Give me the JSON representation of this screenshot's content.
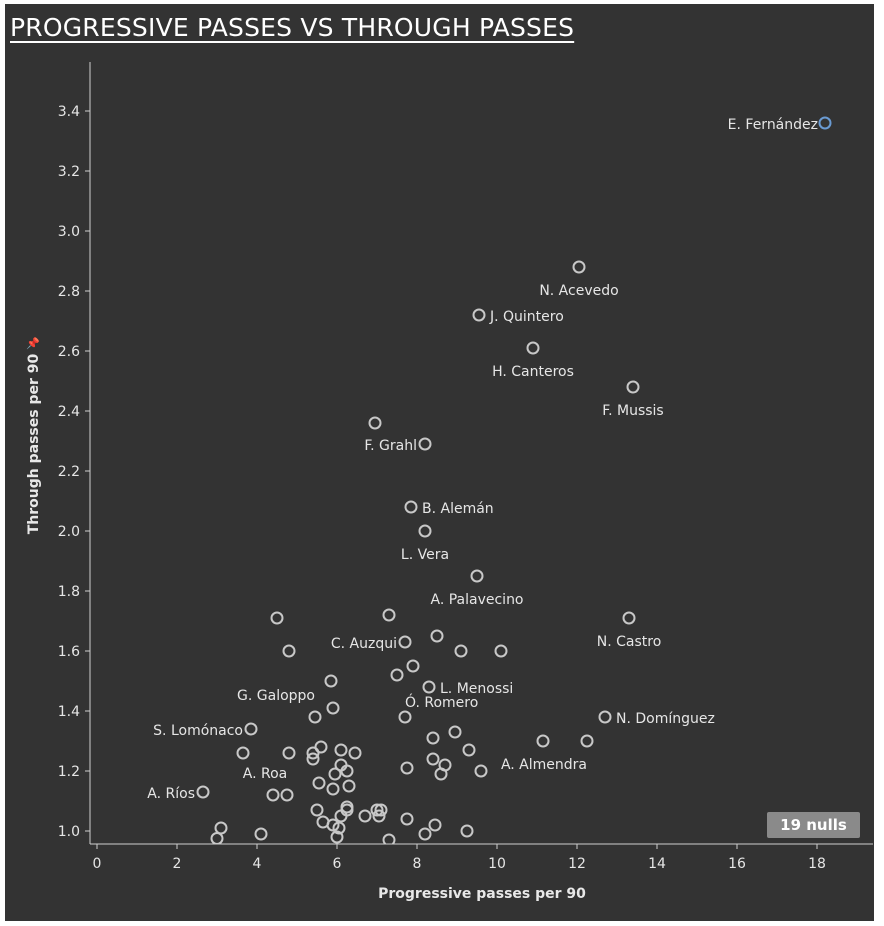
{
  "title": "PROGRESSIVE PASSES VS THROUGH PASSES",
  "nulls_badge": "19 nulls",
  "colors": {
    "background": "#333333",
    "point": "#c8c8c8",
    "highlight": "#6a9bd3",
    "axis": "#cfcfcf",
    "text": "#e6e6e6"
  },
  "chart_data": {
    "type": "scatter",
    "xlabel": "Progressive passes per 90",
    "ylabel": "Through passes per 90",
    "xlim": [
      -0.4,
      19.3
    ],
    "ylim": [
      0.96,
      3.6
    ],
    "xticks": [
      0,
      2,
      4,
      6,
      8,
      10,
      12,
      14,
      16,
      18
    ],
    "yticks": [
      1.0,
      1.2,
      1.4,
      1.6,
      1.8,
      2.0,
      2.2,
      2.4,
      2.6,
      2.8,
      3.0,
      3.2,
      3.4
    ],
    "grid": false,
    "points": [
      {
        "x": 18.2,
        "y": 3.36,
        "label": "E. Fernández",
        "highlight": true
      },
      {
        "x": 12.05,
        "y": 2.88,
        "label": "N. Acevedo"
      },
      {
        "x": 9.55,
        "y": 2.72,
        "label": "J. Quintero"
      },
      {
        "x": 10.9,
        "y": 2.61,
        "label": "H. Canteros"
      },
      {
        "x": 13.4,
        "y": 2.48,
        "label": "F. Mussis"
      },
      {
        "x": 6.95,
        "y": 2.36
      },
      {
        "x": 8.2,
        "y": 2.29,
        "label": "F. Grahl"
      },
      {
        "x": 7.85,
        "y": 2.08,
        "label": "B. Alemán"
      },
      {
        "x": 8.2,
        "y": 2.0,
        "label": "L. Vera"
      },
      {
        "x": 9.5,
        "y": 1.85,
        "label": "A. Palavecino"
      },
      {
        "x": 4.5,
        "y": 1.71
      },
      {
        "x": 7.3,
        "y": 1.72
      },
      {
        "x": 13.3,
        "y": 1.71,
        "label": "N. Castro"
      },
      {
        "x": 7.7,
        "y": 1.63,
        "label": "C. Auzqui"
      },
      {
        "x": 8.5,
        "y": 1.65
      },
      {
        "x": 4.8,
        "y": 1.6
      },
      {
        "x": 9.1,
        "y": 1.6
      },
      {
        "x": 10.1,
        "y": 1.6
      },
      {
        "x": 7.9,
        "y": 1.55
      },
      {
        "x": 7.5,
        "y": 1.52
      },
      {
        "x": 5.85,
        "y": 1.5
      },
      {
        "x": 8.3,
        "y": 1.48,
        "label": "L. Menossi"
      },
      {
        "x": 5.9,
        "y": 1.41
      },
      {
        "x": 5.45,
        "y": 1.38,
        "label": "G. Galoppo"
      },
      {
        "x": 7.7,
        "y": 1.38,
        "label": "Ó. Romero"
      },
      {
        "x": 12.7,
        "y": 1.38,
        "label": "N. Domínguez"
      },
      {
        "x": 3.85,
        "y": 1.34,
        "label": "S. Lomónaco"
      },
      {
        "x": 8.95,
        "y": 1.33
      },
      {
        "x": 8.4,
        "y": 1.31
      },
      {
        "x": 11.15,
        "y": 1.3
      },
      {
        "x": 12.25,
        "y": 1.3,
        "label": "A. Almendra"
      },
      {
        "x": 9.3,
        "y": 1.27
      },
      {
        "x": 6.1,
        "y": 1.27
      },
      {
        "x": 5.6,
        "y": 1.28
      },
      {
        "x": 3.65,
        "y": 1.26,
        "label": "A. Roa"
      },
      {
        "x": 4.8,
        "y": 1.26
      },
      {
        "x": 5.4,
        "y": 1.26
      },
      {
        "x": 6.45,
        "y": 1.26
      },
      {
        "x": 5.4,
        "y": 1.24
      },
      {
        "x": 8.4,
        "y": 1.24
      },
      {
        "x": 6.1,
        "y": 1.22
      },
      {
        "x": 8.7,
        "y": 1.22
      },
      {
        "x": 6.25,
        "y": 1.2
      },
      {
        "x": 7.75,
        "y": 1.21
      },
      {
        "x": 9.6,
        "y": 1.2
      },
      {
        "x": 8.6,
        "y": 1.19
      },
      {
        "x": 5.95,
        "y": 1.19
      },
      {
        "x": 5.55,
        "y": 1.16
      },
      {
        "x": 6.3,
        "y": 1.15
      },
      {
        "x": 5.9,
        "y": 1.14
      },
      {
        "x": 2.65,
        "y": 1.13,
        "label": "A. Ríos"
      },
      {
        "x": 4.4,
        "y": 1.12
      },
      {
        "x": 4.75,
        "y": 1.12
      },
      {
        "x": 5.5,
        "y": 1.07
      },
      {
        "x": 6.25,
        "y": 1.07
      },
      {
        "x": 6.25,
        "y": 1.08
      },
      {
        "x": 7.0,
        "y": 1.07
      },
      {
        "x": 7.1,
        "y": 1.07
      },
      {
        "x": 6.7,
        "y": 1.05
      },
      {
        "x": 7.05,
        "y": 1.05
      },
      {
        "x": 6.1,
        "y": 1.05
      },
      {
        "x": 5.65,
        "y": 1.03
      },
      {
        "x": 7.75,
        "y": 1.04
      },
      {
        "x": 5.9,
        "y": 1.02
      },
      {
        "x": 6.05,
        "y": 1.01
      },
      {
        "x": 8.45,
        "y": 1.02
      },
      {
        "x": 3.1,
        "y": 1.01
      },
      {
        "x": 8.2,
        "y": 0.99
      },
      {
        "x": 9.25,
        "y": 1.0
      },
      {
        "x": 4.1,
        "y": 0.99
      },
      {
        "x": 6.0,
        "y": 0.98
      },
      {
        "x": 3.0,
        "y": 0.975
      },
      {
        "x": 7.3,
        "y": 0.97
      }
    ]
  }
}
